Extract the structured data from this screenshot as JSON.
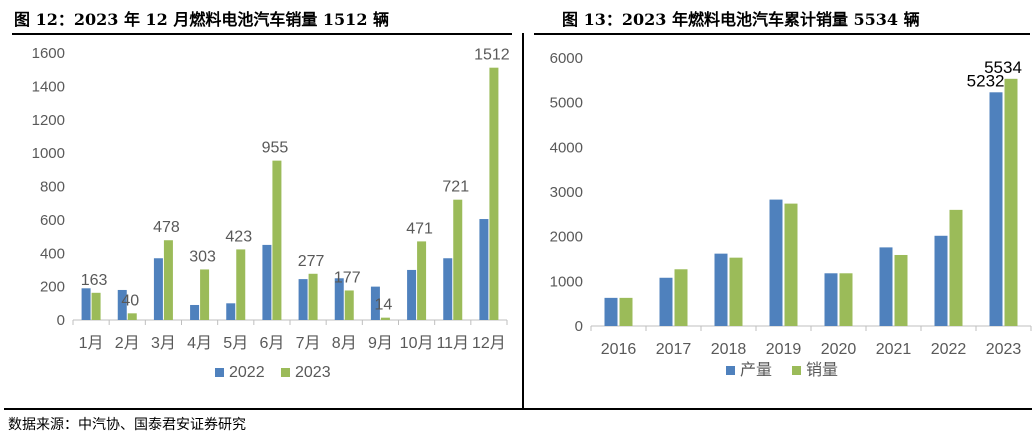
{
  "titles": {
    "left": "图 12：2023 年 12 月燃料电池汽车销量 1512 辆",
    "right": "图 13：2023 年燃料电池汽车累计销量 5534 辆"
  },
  "source": "数据来源：中汽协、国泰君安证券研究",
  "colors": {
    "blue": "#4f81bd",
    "green": "#9bbb59",
    "axis": "#bfbfbf",
    "text": "#595959"
  },
  "chart_data": [
    {
      "type": "bar",
      "title": "",
      "categories": [
        "1月",
        "2月",
        "3月",
        "4月",
        "5月",
        "6月",
        "7月",
        "8月",
        "9月",
        "10月",
        "11月",
        "12月"
      ],
      "series": [
        {
          "name": "2022",
          "values": [
            190,
            180,
            370,
            90,
            100,
            450,
            245,
            250,
            200,
            300,
            370,
            605
          ]
        },
        {
          "name": "2023",
          "values": [
            163,
            40,
            478,
            303,
            423,
            955,
            277,
            177,
            14,
            471,
            721,
            1512
          ]
        }
      ],
      "data_labels": {
        "series": "2023",
        "values": [
          "163",
          "40",
          "478",
          "303",
          "423",
          "955",
          "277",
          "177",
          "14",
          "471",
          "721",
          "1512"
        ]
      },
      "ylim": [
        0,
        1600
      ],
      "yticks": [
        "0",
        "200",
        "400",
        "600",
        "800",
        "1000",
        "1200",
        "1400",
        "1600"
      ],
      "legend": "bottom",
      "grid": false
    },
    {
      "type": "bar",
      "title": "",
      "categories": [
        "2016",
        "2017",
        "2018",
        "2019",
        "2020",
        "2021",
        "2022",
        "2023"
      ],
      "series": [
        {
          "name": "产量",
          "values": [
            630,
            1080,
            1620,
            2830,
            1180,
            1760,
            2020,
            5232
          ]
        },
        {
          "name": "销量",
          "values": [
            630,
            1270,
            1530,
            2740,
            1180,
            1590,
            2600,
            5534
          ]
        }
      ],
      "data_labels": [
        {
          "series": "产量",
          "category": "2023",
          "value": "5232"
        },
        {
          "series": "销量",
          "category": "2023",
          "value": "5534"
        }
      ],
      "ylim": [
        0,
        6000
      ],
      "yticks": [
        "0",
        "1000",
        "2000",
        "3000",
        "4000",
        "5000",
        "6000"
      ],
      "legend": "bottom",
      "grid": false
    }
  ]
}
